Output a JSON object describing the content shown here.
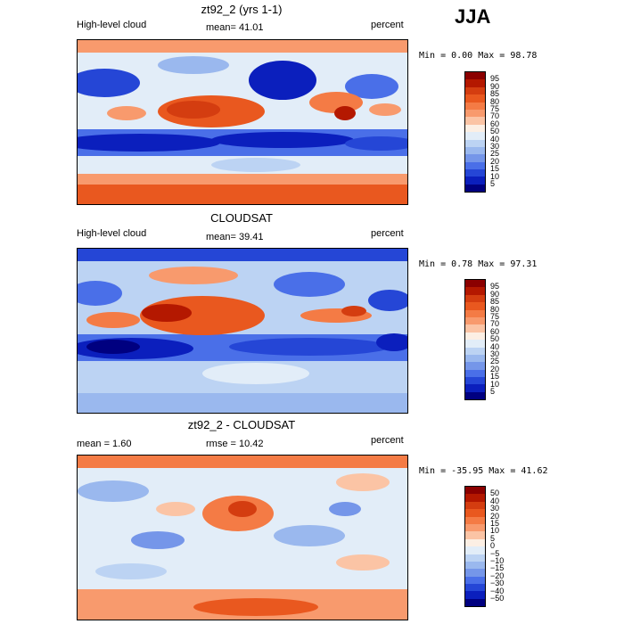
{
  "season": "JJA",
  "panels": [
    {
      "title": "zt92_2 (yrs 1-1)",
      "left_label": "High-level cloud",
      "center_label": "mean=  41.01",
      "right_label": "percent",
      "minmax": "Min =    0.00 Max =   98.78",
      "colorbar_labels": [
        "95",
        "90",
        "85",
        "80",
        "75",
        "70",
        "60",
        "50",
        "40",
        "30",
        "25",
        "20",
        "15",
        "10",
        "5"
      ]
    },
    {
      "title": "CLOUDSAT",
      "left_label": "High-level cloud",
      "center_label": "mean=  39.41",
      "right_label": "percent",
      "minmax": "Min =    0.78 Max =   97.31",
      "colorbar_labels": [
        "95",
        "90",
        "85",
        "80",
        "75",
        "70",
        "60",
        "50",
        "40",
        "30",
        "25",
        "20",
        "15",
        "10",
        "5"
      ]
    },
    {
      "title": "zt92_2 - CLOUDSAT",
      "left_label": "mean =    1.60",
      "center_label": "rmse =  10.42",
      "right_label": "percent",
      "minmax": "Min = -35.95 Max =  41.62",
      "colorbar_labels": [
        "50",
        "40",
        "30",
        "20",
        "15",
        "10",
        "5",
        "0",
        "−5",
        "−10",
        "−15",
        "−20",
        "−30",
        "−40",
        "−50"
      ]
    }
  ],
  "colors": {
    "seq": [
      "#8b0000",
      "#b41800",
      "#d43d10",
      "#e9581f",
      "#f47b45",
      "#f89a6d",
      "#fbc4a5",
      "#fcefe4",
      "#e2edf8",
      "#bcd3f3",
      "#9ab8ee",
      "#7596e9",
      "#4a6fe8",
      "#2546d6",
      "#0b1fbd",
      "#000080"
    ],
    "div": [
      "#8b0000",
      "#b41800",
      "#d43d10",
      "#e9581f",
      "#f47b45",
      "#f89a6d",
      "#fbc4a5",
      "#fcefe4",
      "#e2edf8",
      "#bcd3f3",
      "#9ab8ee",
      "#7596e9",
      "#4a6fe8",
      "#2546d6",
      "#0b1fbd",
      "#000080"
    ]
  }
}
